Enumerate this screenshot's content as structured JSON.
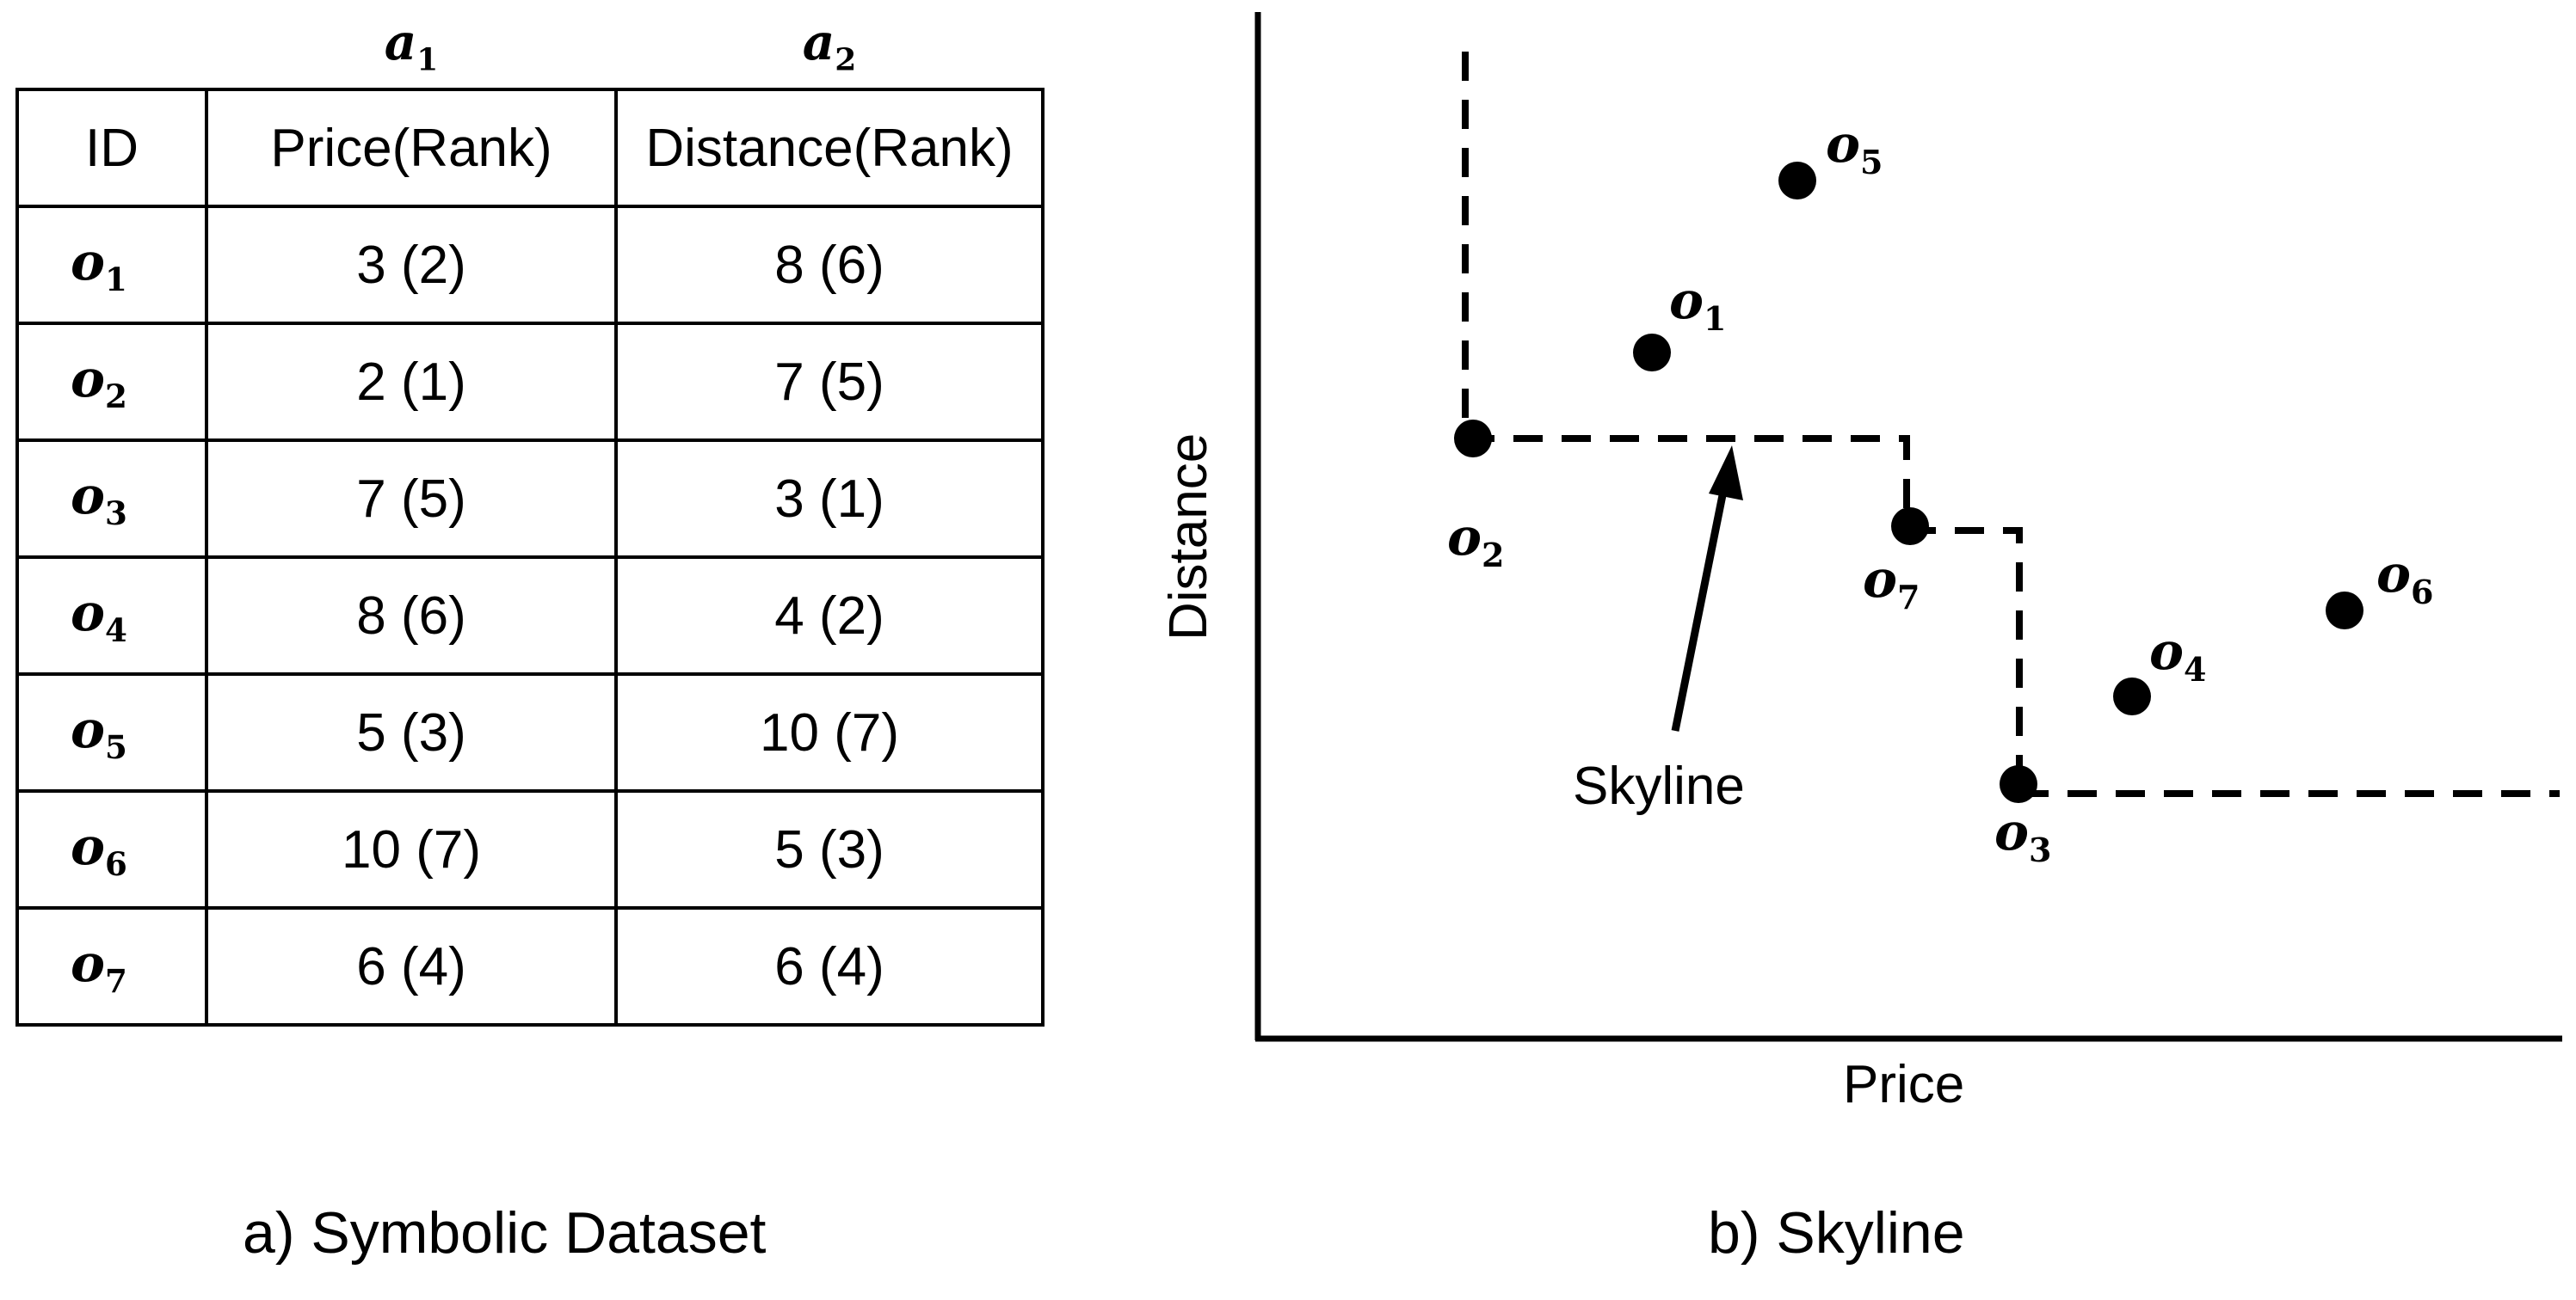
{
  "panel_a": {
    "attr_headers": [
      {
        "base": "a",
        "sub": "1"
      },
      {
        "base": "a",
        "sub": "2"
      }
    ],
    "columns": [
      "ID",
      "Price(Rank)",
      "Distance(Rank)"
    ],
    "rows": [
      {
        "id_base": "o",
        "id_sub": "1",
        "price": "3 (2)",
        "distance": "8 (6)"
      },
      {
        "id_base": "o",
        "id_sub": "2",
        "price": "2 (1)",
        "distance": "7 (5)"
      },
      {
        "id_base": "o",
        "id_sub": "3",
        "price": "7 (5)",
        "distance": "3 (1)"
      },
      {
        "id_base": "o",
        "id_sub": "4",
        "price": "8 (6)",
        "distance": "4 (2)"
      },
      {
        "id_base": "o",
        "id_sub": "5",
        "price": "5 (3)",
        "distance": "10 (7)"
      },
      {
        "id_base": "o",
        "id_sub": "6",
        "price": "10 (7)",
        "distance": "5 (3)"
      },
      {
        "id_base": "o",
        "id_sub": "7",
        "price": "6 (4)",
        "distance": "6 (4)"
      }
    ],
    "caption": "a) Symbolic Dataset"
  },
  "panel_b": {
    "xlabel": "Price",
    "ylabel": "Distance",
    "annotation": "Skyline",
    "caption": "b) Skyline",
    "points": [
      {
        "base": "o",
        "sub": "1"
      },
      {
        "base": "o",
        "sub": "2"
      },
      {
        "base": "o",
        "sub": "3"
      },
      {
        "base": "o",
        "sub": "4"
      },
      {
        "base": "o",
        "sub": "5"
      },
      {
        "base": "o",
        "sub": "6"
      },
      {
        "base": "o",
        "sub": "7"
      }
    ],
    "skyline_points": [
      "2",
      "7",
      "3"
    ]
  }
}
